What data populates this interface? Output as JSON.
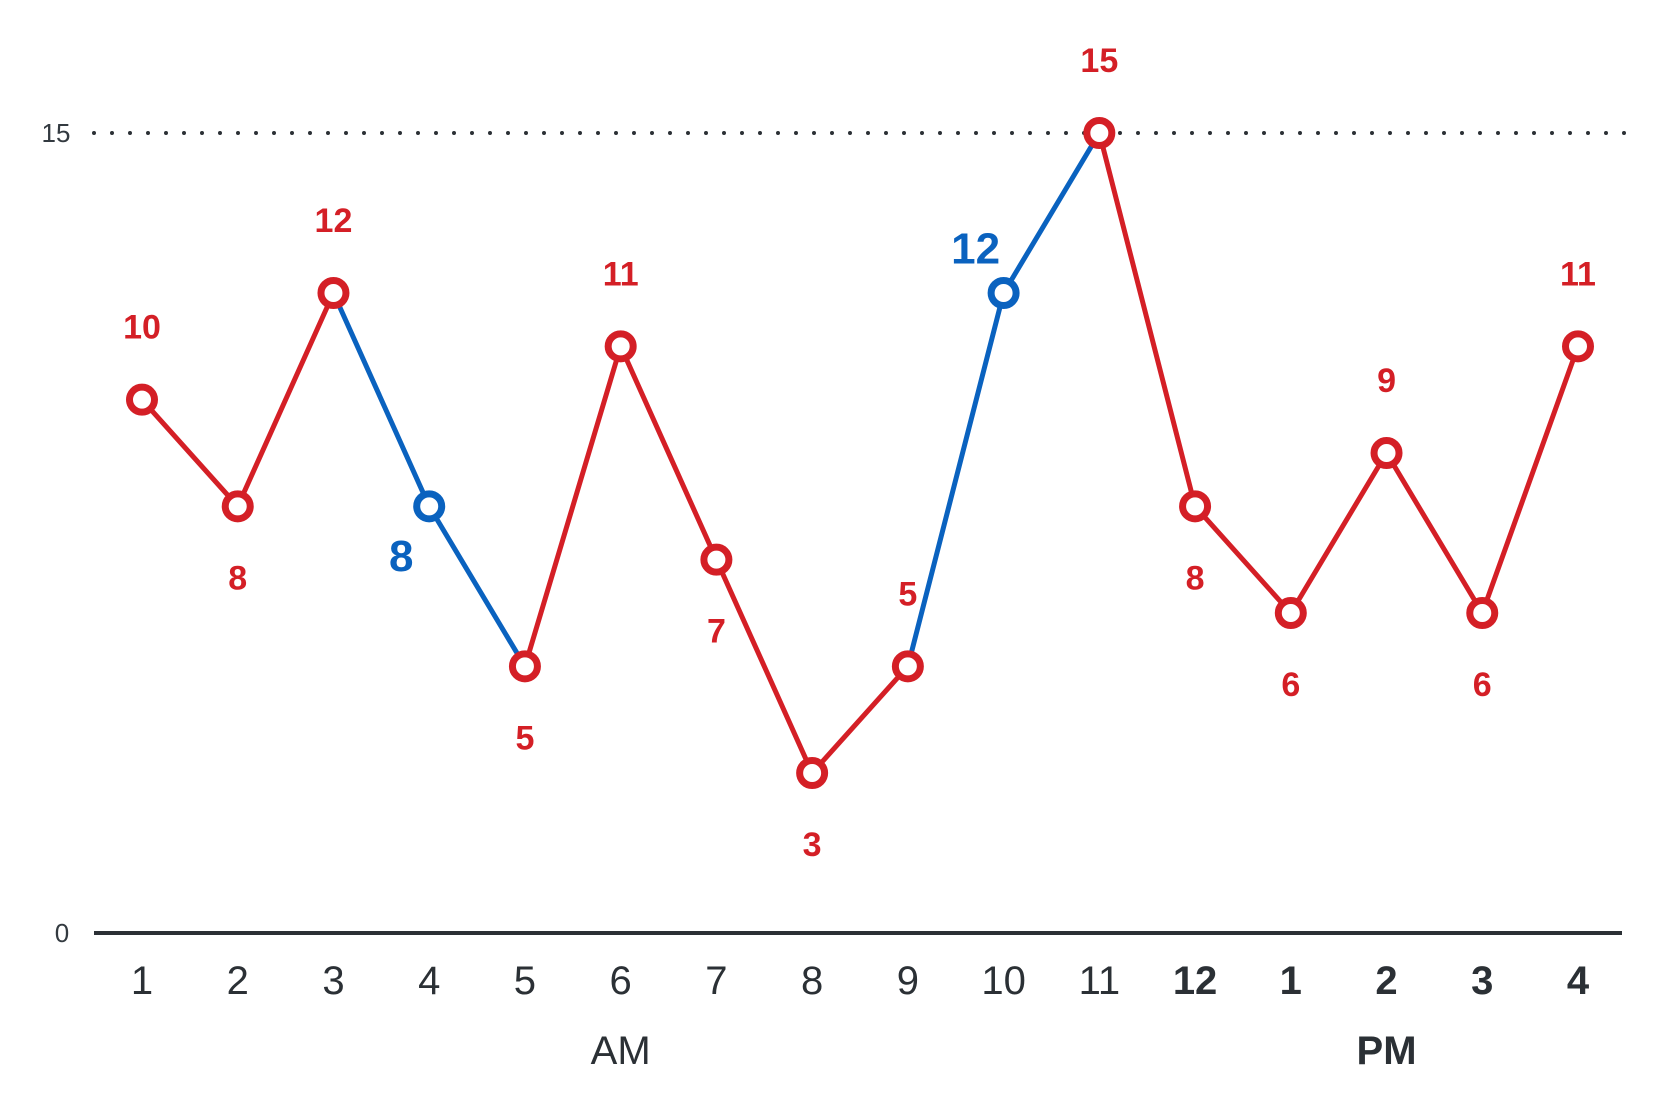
{
  "chart_data": {
    "type": "line",
    "x": [
      "1",
      "2",
      "3",
      "4",
      "5",
      "6",
      "7",
      "8",
      "9",
      "10",
      "11",
      "12",
      "1",
      "2",
      "3",
      "4"
    ],
    "x_bold": [
      false,
      false,
      false,
      false,
      false,
      false,
      false,
      false,
      false,
      false,
      false,
      true,
      true,
      true,
      true,
      true
    ],
    "values": [
      10,
      8,
      12,
      8,
      5,
      11,
      7,
      3,
      5,
      12,
      15,
      8,
      6,
      9,
      6,
      11
    ],
    "highlight_points": [
      3,
      9
    ],
    "highlight_segments": [
      2,
      3,
      8,
      9
    ],
    "label_position": [
      "above",
      "below",
      "above",
      "below",
      "below",
      "above",
      "below",
      "below",
      "above",
      "above",
      "above",
      "below",
      "below",
      "above",
      "below",
      "above"
    ],
    "periods": [
      {
        "label": "AM",
        "bold": false,
        "center_index": 5
      },
      {
        "label": "PM",
        "bold": true,
        "center_index": 13
      }
    ],
    "y_ticks": [
      "0",
      "15"
    ],
    "ylim": [
      0,
      15
    ],
    "reference_line": 15,
    "colors": {
      "main": "#d41f26",
      "highlight": "#0a62bf",
      "axis": "#2b3035"
    }
  }
}
